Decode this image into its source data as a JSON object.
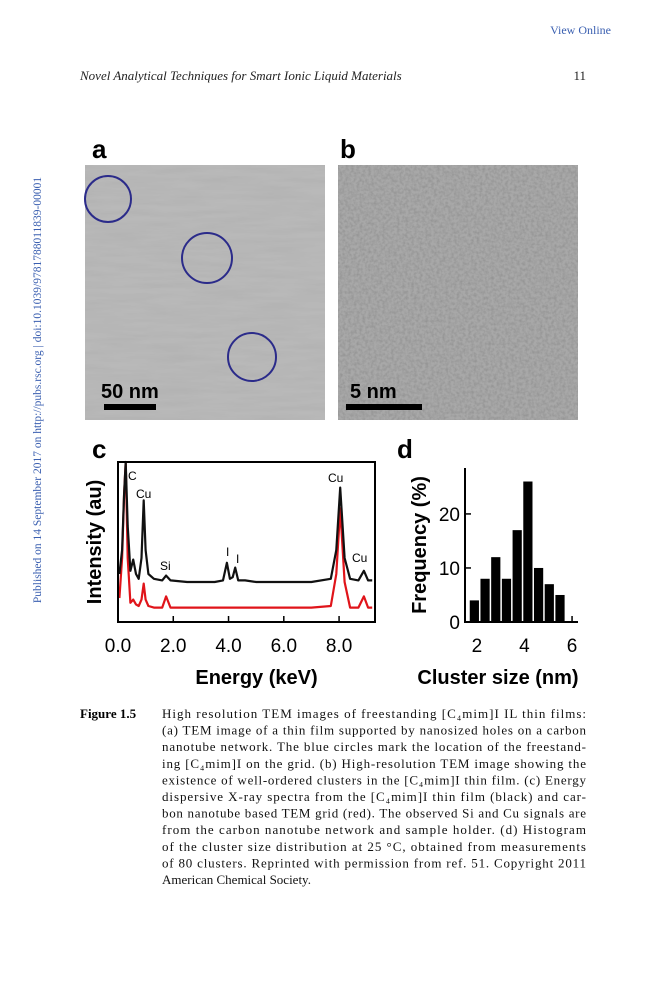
{
  "header": {
    "link": "View Online",
    "running_title": "Novel Analytical Techniques for Smart Ionic Liquid Materials",
    "page_number": "11"
  },
  "sidebar": "Published on 14 September 2017 on http://pubs.rsc.org | doi:10.1039/9781788011839-00001",
  "panels": [
    {
      "label": "a",
      "scale_bar": "50 nm"
    },
    {
      "label": "b",
      "scale_bar": "5 nm"
    }
  ],
  "chart_data": [
    {
      "type": "line",
      "label": "c",
      "xlabel": "Energy (keV)",
      "ylabel": "Intensity (au)",
      "xlim": [
        0,
        9.3
      ],
      "ylim": [
        0,
        100
      ],
      "xticks": [
        {
          "value": 0,
          "label": "0.0"
        },
        {
          "value": 2,
          "label": "2.0"
        },
        {
          "value": 4,
          "label": "4.0"
        },
        {
          "value": 6,
          "label": "6.0"
        },
        {
          "value": 8,
          "label": "8.0"
        }
      ],
      "x": [
        0.05,
        0.15,
        0.22,
        0.28,
        0.35,
        0.45,
        0.55,
        0.65,
        0.75,
        0.85,
        0.93,
        1.0,
        1.1,
        1.3,
        1.6,
        1.74,
        1.9,
        2.5,
        3.0,
        3.5,
        3.8,
        3.94,
        4.05,
        4.15,
        4.24,
        4.35,
        4.6,
        5.0,
        6.0,
        7.0,
        7.7,
        7.9,
        8.04,
        8.2,
        8.4,
        8.7,
        8.9,
        9.05,
        9.2
      ],
      "series": [
        {
          "color": "#e0141a",
          "values": [
            15,
            40,
            80,
            100,
            40,
            12,
            14,
            11,
            10,
            14,
            24,
            14,
            10,
            9,
            9,
            16,
            9,
            9,
            9,
            9,
            9,
            9,
            9,
            9,
            9,
            9,
            9,
            9,
            9,
            9,
            10,
            30,
            71,
            25,
            9,
            9,
            16,
            9,
            9
          ]
        },
        {
          "color": "#111111",
          "values": [
            30,
            45,
            80,
            100,
            60,
            32,
            39,
            30,
            27,
            40,
            76,
            45,
            30,
            27,
            26,
            29,
            26,
            25,
            25,
            25,
            26,
            37,
            27,
            28,
            34,
            26,
            26,
            25,
            25,
            25,
            27,
            45,
            84,
            40,
            27,
            26,
            32,
            26,
            26
          ]
        }
      ],
      "annotations": [
        "C",
        "Cu",
        "Si",
        "I",
        "I",
        "Cu",
        "Cu"
      ]
    },
    {
      "type": "histogram",
      "label": "d",
      "xlabel": "Cluster size (nm)",
      "ylabel": "Frequency (%)",
      "xlim": [
        1.5,
        6.25
      ],
      "ylim": [
        0,
        28.5
      ],
      "xticks": [
        2,
        4,
        6
      ],
      "yticks": [
        0,
        10,
        20
      ],
      "bins": [
        1.7,
        2.15,
        2.6,
        3.05,
        3.5,
        3.95,
        4.4,
        4.85,
        5.3,
        5.75
      ],
      "values": [
        4,
        8,
        12,
        8,
        17,
        26,
        10,
        7,
        5
      ],
      "color": "#000000"
    }
  ],
  "caption": {
    "label": "Figure 1.5",
    "lines": [
      "High resolution TEM images of freestanding [C₄mim]I IL thin films:",
      "(a) TEM image of a thin film supported by nanosized holes on a carbon",
      "nanotube network. The blue circles mark the location of the freestand-",
      "ing [C₄mim]I on the grid. (b) High-resolution TEM image showing the",
      "existence of well-ordered clusters in the [C₄mim]I thin film. (c) Energy",
      "dispersive X-ray spectra from the [C₄mim]I thin film (black) and car-",
      "bon nanotube based TEM grid (red). The observed Si and Cu signals are",
      "from the carbon nanotube network and sample holder. (d) Histogram",
      "of the cluster size distribution at 25 °C, obtained from measurements",
      "of 80 clusters. Reprinted with permission from ref. 51. Copyright 2011",
      "American Chemical Society."
    ]
  }
}
